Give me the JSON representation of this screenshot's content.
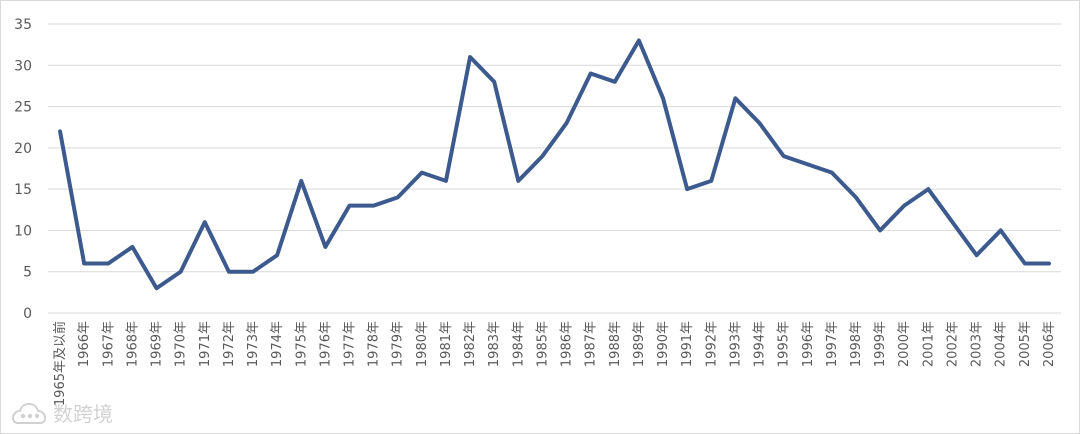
{
  "chart_data": {
    "type": "line",
    "categories": [
      "1965年及以前",
      "1966年",
      "1967年",
      "1968年",
      "1969年",
      "1970年",
      "1971年",
      "1972年",
      "1973年",
      "1974年",
      "1975年",
      "1976年",
      "1977年",
      "1978年",
      "1979年",
      "1980年",
      "1981年",
      "1982年",
      "1983年",
      "1984年",
      "1985年",
      "1986年",
      "1987年",
      "1988年",
      "1989年",
      "1990年",
      "1991年",
      "1992年",
      "1993年",
      "1994年",
      "1995年",
      "1996年",
      "1997年",
      "1998年",
      "1999年",
      "2000年",
      "2001年",
      "2002年",
      "2003年",
      "2004年",
      "2005年",
      "2006年"
    ],
    "series": [
      {
        "values": [
          22,
          6,
          6,
          8,
          3,
          5,
          11,
          5,
          5,
          7,
          16,
          8,
          13,
          13,
          14,
          17,
          16,
          31,
          28,
          16,
          19,
          23,
          29,
          28,
          33,
          26,
          15,
          16,
          26,
          23,
          19,
          18,
          17,
          14,
          10,
          13,
          15,
          11,
          7,
          10,
          6,
          6
        ]
      }
    ],
    "yticks": [
      "0",
      "5",
      "10",
      "15",
      "20",
      "25",
      "30",
      "35"
    ],
    "ylim": [
      0,
      35
    ],
    "grid": true,
    "line_color": "#3d5a8f",
    "grid_color": "#d9d9d9"
  },
  "watermark": {
    "text": "数跨境",
    "logo_icon": "cloud-logo-icon"
  }
}
